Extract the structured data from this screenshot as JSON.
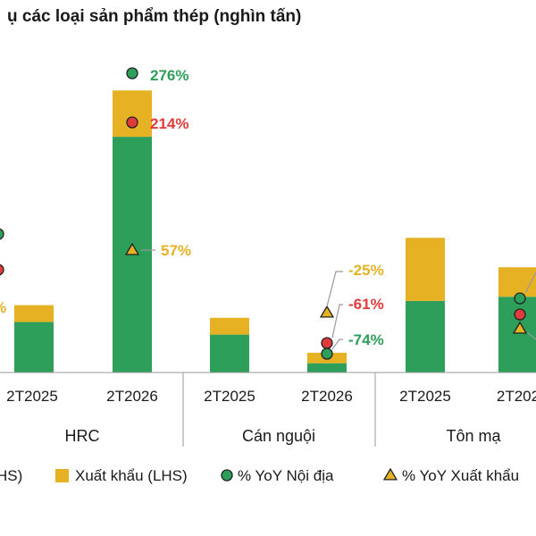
{
  "chart_data": {
    "type": "bar",
    "title": "ụ các loại sản phẩm thép (nghìn tấn)",
    "groups": [
      {
        "name": "HRC",
        "categories": [
          "2T2025",
          "2T2026"
        ]
      },
      {
        "name": "Cán nguội",
        "categories": [
          "2T2025",
          "2T2026"
        ]
      },
      {
        "name": "Tôn mạ",
        "categories": [
          "2T2025",
          "2T202"
        ]
      }
    ],
    "series": [
      {
        "name": "HS)",
        "values": [
          null,
          120,
          560,
          90,
          22,
          170,
          180
        ],
        "color": "#2e9e5b"
      },
      {
        "name": "Xuất khẩu (LHS)",
        "values": [
          null,
          40,
          110,
          40,
          25,
          150,
          70
        ],
        "color": "#e6b224"
      }
    ],
    "yoy_series": [
      {
        "name": "% YoY Nội địa",
        "marker": "circle",
        "color": "#2e9e5b"
      },
      {
        "name": "% YoY Xuất khẩu",
        "marker": "triangle",
        "color": "#e6b224"
      }
    ],
    "annotations": [
      {
        "text": "276%",
        "color": "#2e9e5b"
      },
      {
        "text": "214%",
        "color": "#e03c3c"
      },
      {
        "text": "57%",
        "color": "#e6b224"
      },
      {
        "text": "-25%",
        "color": "#e6b224"
      },
      {
        "text": "-61%",
        "color": "#e03c3c"
      },
      {
        "text": "-74%",
        "color": "#2e9e5b"
      },
      {
        "text": "%",
        "color": "#e6b224"
      }
    ],
    "ylim": [
      0,
      800
    ],
    "legend_position": "bottom"
  },
  "colors": {
    "green": "#2e9e5b",
    "yellow": "#e6b224",
    "red": "#e03c3c",
    "axis": "#9a9a9a"
  }
}
